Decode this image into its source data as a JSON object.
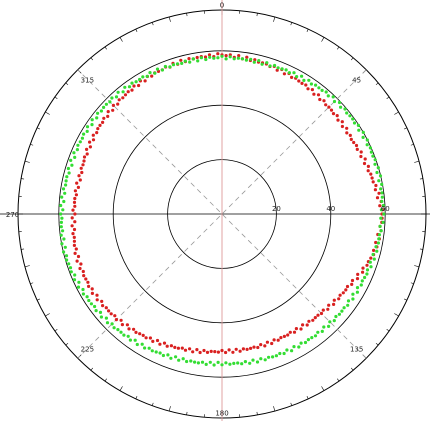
{
  "chart_data": {
    "type": "scatter",
    "coordinate_system": "polar",
    "angle_labels": [
      "0",
      "45",
      "135",
      "180",
      "225",
      "270",
      "315"
    ],
    "radial_ticks": [
      "20",
      "40",
      "60"
    ],
    "radial_range": [
      0,
      75
    ],
    "angle_direction": "clockwise from top",
    "grid": true,
    "series": [
      {
        "color": "#d92020",
        "angles": [
          0,
          15,
          30,
          45,
          60,
          75,
          90,
          105,
          120,
          135,
          150,
          165,
          180,
          195,
          210,
          225,
          240,
          255,
          270,
          285,
          300,
          315,
          330,
          345,
          360
        ],
        "radii": [
          58.5,
          57.5,
          56.5,
          55.5,
          55.0,
          56.5,
          59.0,
          57.5,
          53.5,
          51.5,
          50.5,
          50.5,
          50.5,
          51.5,
          53.0,
          54.5,
          55.5,
          55.5,
          54.5,
          54.0,
          55.0,
          56.0,
          57.0,
          58.0,
          58.5
        ]
      },
      {
        "color": "#33dd33",
        "angles": [
          0,
          15,
          30,
          45,
          60,
          75,
          90,
          105,
          120,
          135,
          150,
          165,
          180,
          195,
          210,
          225,
          240,
          255,
          270,
          285,
          300,
          315,
          330,
          345,
          360
        ],
        "radii": [
          57.5,
          57.5,
          58.0,
          59.0,
          59.5,
          59.5,
          59.0,
          58.0,
          57.0,
          56.5,
          56.0,
          55.5,
          55.0,
          55.5,
          56.5,
          57.5,
          58.5,
          59.5,
          59.0,
          58.5,
          58.5,
          58.5,
          58.0,
          57.5,
          57.5
        ]
      }
    ]
  }
}
